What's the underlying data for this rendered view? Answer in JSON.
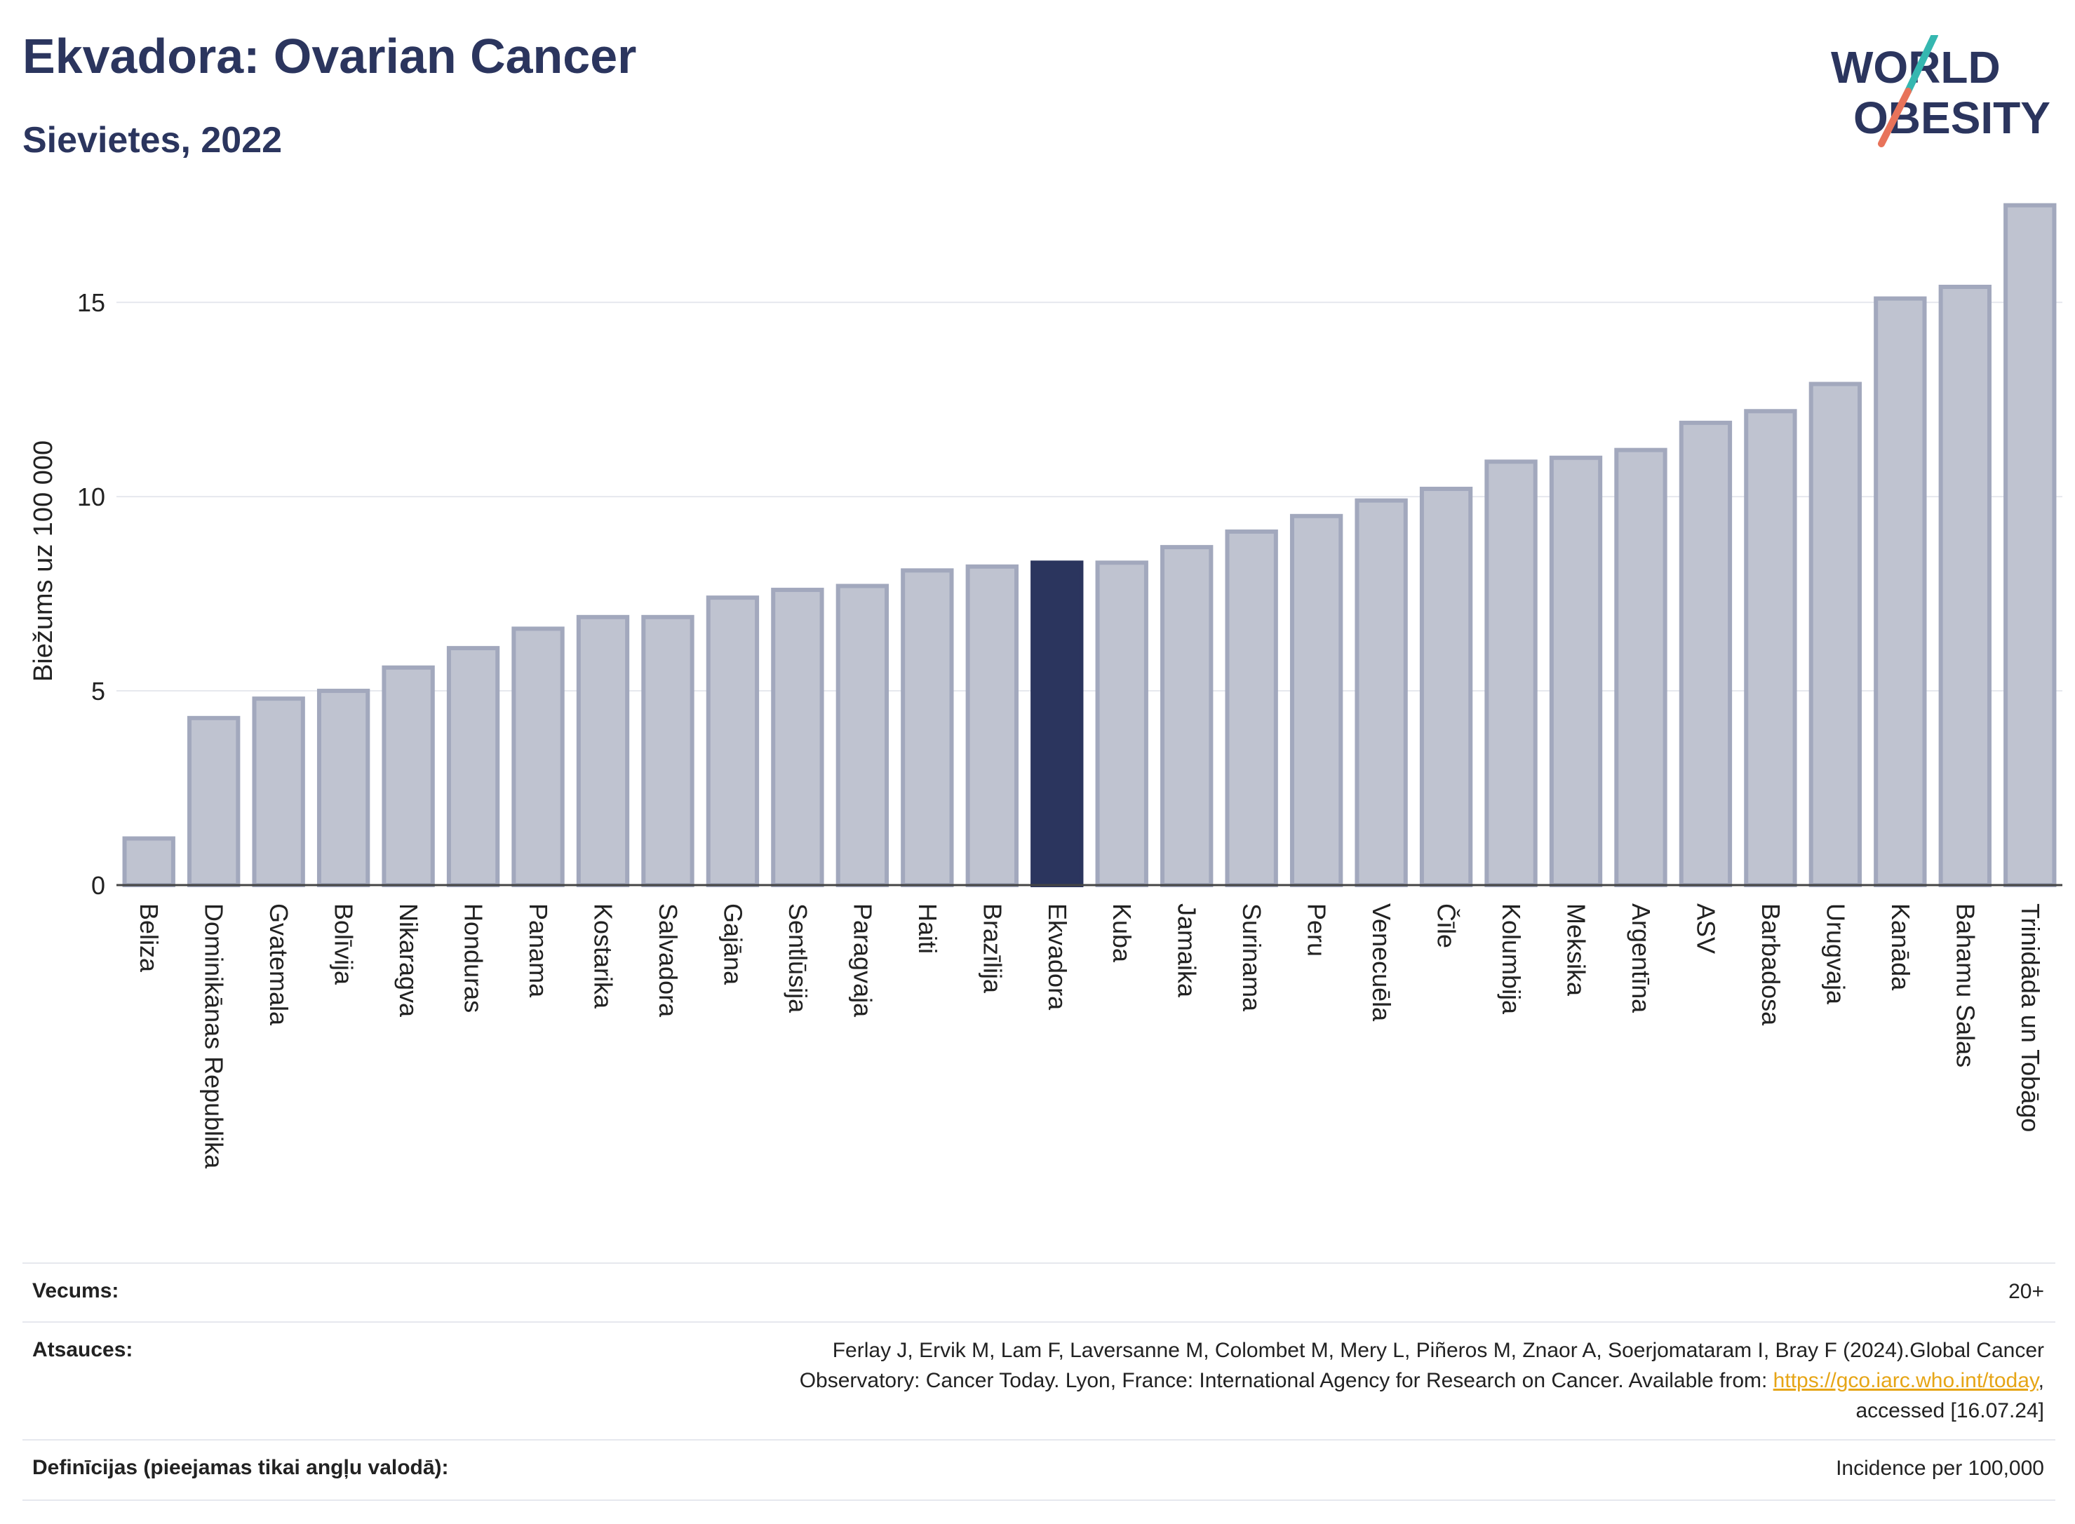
{
  "header": {
    "title": "Ekvadora: Ovarian Cancer",
    "subtitle": "Sievietes, 2022"
  },
  "logo": {
    "line1": "WORLD",
    "line2": "OBESITY",
    "colors": {
      "text": "#2b355e",
      "slash_top": "#35b7b0",
      "slash_bottom": "#e8735a"
    }
  },
  "colors": {
    "bar": "#bfc3d0",
    "bar_edge": "#a2a8bd",
    "highlight": "#2b355e",
    "grid": "#e6e8ee",
    "axis": "#444444"
  },
  "chart_data": {
    "type": "bar",
    "ylabel": "Biežums uz 100 000",
    "ylim": [
      0,
      18
    ],
    "yticks": [
      0,
      5,
      10,
      15
    ],
    "grid": true,
    "highlight": "Ekvadora",
    "categories": [
      "Beliza",
      "Dominikānas Republika",
      "Gvatemala",
      "Bolīvija",
      "Nikaragva",
      "Honduras",
      "Panama",
      "Kostarika",
      "Salvadora",
      "Gajāna",
      "Sentlūsija",
      "Paragvaja",
      "Haiti",
      "Brazīlija",
      "Ekvadora",
      "Kuba",
      "Jamaika",
      "Surinama",
      "Peru",
      "Venecuēla",
      "Čīle",
      "Kolumbija",
      "Meksika",
      "Argentīna",
      "ASV",
      "Barbadosa",
      "Urugvaja",
      "Kanāda",
      "Bahamu Salas",
      "Trinidāda un Tobāgo"
    ],
    "values": [
      1.2,
      4.3,
      4.8,
      5.0,
      5.6,
      6.1,
      6.6,
      6.9,
      6.9,
      7.4,
      7.6,
      7.7,
      8.1,
      8.2,
      8.3,
      8.3,
      8.7,
      9.1,
      9.5,
      9.9,
      10.2,
      10.9,
      11.0,
      11.2,
      11.9,
      12.2,
      12.9,
      15.1,
      15.4,
      17.5
    ]
  },
  "info": {
    "age_label": "Vecums:",
    "age_value": "20+",
    "refs_label": "Atsauces:",
    "refs_line1": "Ferlay J, Ervik M, Lam F, Laversanne M, Colombet M, Mery L, Piñeros M, Znaor A, Soerjomataram I, Bray F (2024).Global Cancer",
    "refs_line2_prefix": "Observatory: Cancer Today. Lyon, France: International Agency for Research on Cancer. Available from: ",
    "refs_link": "https://gco.iarc.who.int/today",
    "refs_line2_suffix": ",",
    "refs_line3": "accessed [16.07.24]",
    "def_label": "Definīcijas (pieejamas tikai angļu valodā):",
    "def_value": "Incidence per 100,000"
  }
}
